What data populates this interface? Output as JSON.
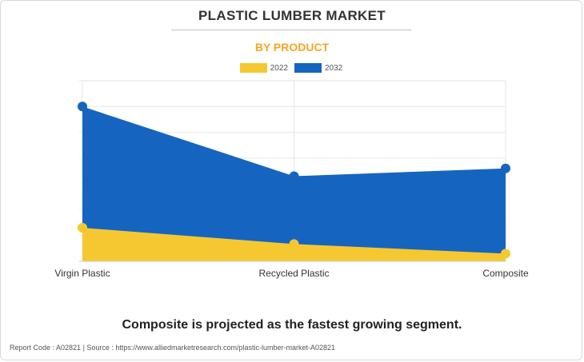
{
  "header": {
    "title": "PLASTIC LUMBER MARKET",
    "subtitle": "BY PRODUCT"
  },
  "colors": {
    "series_2022": "#f5c832",
    "series_2032": "#1565c0",
    "subtitle": "#f5a623"
  },
  "chart_data": {
    "type": "area",
    "title": "PLASTIC LUMBER MARKET",
    "subtitle": "BY PRODUCT",
    "categories": [
      "Virgin Plastic",
      "Recycled Plastic",
      "Composite"
    ],
    "series": [
      {
        "name": "2022",
        "values": [
          1.3,
          0.67,
          0.3
        ]
      },
      {
        "name": "2032",
        "values": [
          6.0,
          3.3,
          3.6
        ]
      }
    ],
    "ylim": [
      0,
      7
    ],
    "y_gridlines": 7,
    "x_gridlines": true,
    "y_tick_labels_shown": false,
    "legend_position": "top-center"
  },
  "insight": "Composite is projected as the fastest growing segment.",
  "footer": "Report Code : A02821  |  Source : https://www.alliedmarketresearch.com/plastic-lumber-market-A02821"
}
